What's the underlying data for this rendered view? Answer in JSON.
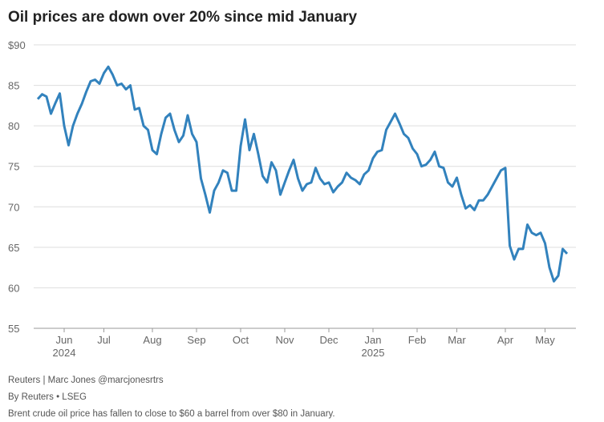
{
  "chart_data": {
    "type": "line",
    "title": "Oil prices are down over 20% since mid January",
    "source": "Reuters | Marc Jones @marcjonesrtrs",
    "byline": "By Reuters • LSEG",
    "note": "Brent crude oil price has fallen to close to $60 a barrel from over $80 in January.",
    "categories": [
      null,
      null,
      null,
      null,
      null,
      null,
      "Jun\n2024",
      null,
      null,
      null,
      null,
      null,
      null,
      null,
      null,
      "Jul",
      null,
      null,
      null,
      null,
      null,
      null,
      null,
      null,
      null,
      null,
      "Aug",
      null,
      null,
      null,
      null,
      null,
      null,
      null,
      null,
      null,
      "Sep",
      null,
      null,
      null,
      null,
      null,
      null,
      null,
      null,
      null,
      "Oct",
      null,
      null,
      null,
      null,
      null,
      null,
      null,
      null,
      null,
      "Nov",
      null,
      null,
      null,
      null,
      null,
      null,
      null,
      null,
      null,
      "Dec",
      null,
      null,
      null,
      null,
      null,
      null,
      null,
      null,
      null,
      "Jan\n2025",
      null,
      null,
      null,
      null,
      null,
      null,
      null,
      null,
      null,
      "Feb",
      null,
      null,
      null,
      null,
      null,
      null,
      null,
      null,
      "Mar",
      null,
      null,
      null,
      null,
      null,
      null,
      null,
      null,
      null,
      null,
      "Apr",
      null,
      null,
      null,
      null,
      null,
      null,
      null,
      null,
      "May",
      null,
      null,
      null,
      null,
      null
    ],
    "series": [
      {
        "name": "Brent crude",
        "color": "#3282bd",
        "values": [
          83.3,
          83.9,
          83.6,
          81.5,
          82.8,
          84,
          80,
          77.6,
          80,
          81.5,
          82.7,
          84.2,
          85.5,
          85.7,
          85.2,
          86.5,
          87.3,
          86.3,
          85,
          85.2,
          84.5,
          85,
          82,
          82.2,
          80,
          79.5,
          77,
          76.5,
          79,
          81,
          81.5,
          79.5,
          78,
          78.8,
          81.3,
          79,
          78,
          73.5,
          71.5,
          69.3,
          72,
          73,
          74.5,
          74.2,
          72,
          72,
          77.5,
          80.8,
          77,
          79,
          76.5,
          73.8,
          73,
          75.5,
          74.5,
          71.5,
          73,
          74.5,
          75.8,
          73.5,
          72,
          72.8,
          73,
          74.8,
          73.5,
          72.8,
          73,
          71.8,
          72.5,
          73,
          74.2,
          73.6,
          73.3,
          72.8,
          74,
          74.5,
          76,
          76.8,
          77,
          79.5,
          80.5,
          81.5,
          80.3,
          79,
          78.5,
          77.2,
          76.5,
          75,
          75.2,
          75.8,
          76.8,
          75,
          74.8,
          73,
          72.5,
          73.6,
          71.5,
          69.8,
          70.2,
          69.6,
          70.8,
          70.8,
          71.5,
          72.5,
          73.5,
          74.5,
          74.8,
          65.2,
          63.5,
          64.8,
          64.8,
          67.8,
          66.8,
          66.5,
          66.8,
          65.5,
          62.5,
          60.8,
          61.5,
          64.8,
          64.2
        ]
      }
    ],
    "ylim": [
      55,
      90
    ],
    "yticks": [
      55,
      60,
      65,
      70,
      75,
      80,
      85,
      {
        "value": 90,
        "label": "$90"
      }
    ],
    "grid": true
  }
}
